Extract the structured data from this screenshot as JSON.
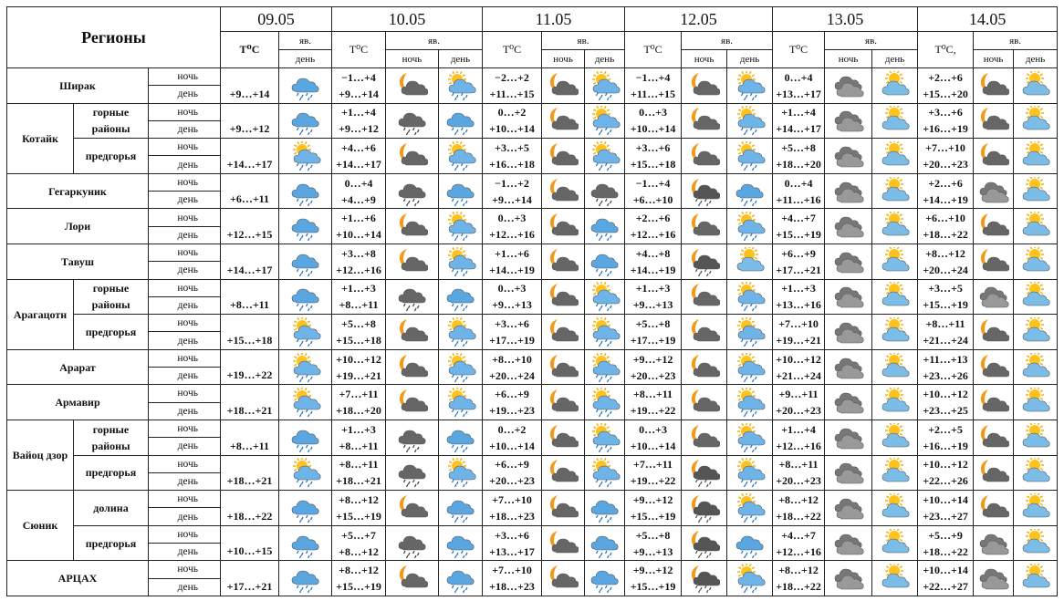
{
  "header": {
    "title": "Регионы",
    "yav": "яв.",
    "night": "ночь",
    "day": "день",
    "days": [
      {
        "date": "09.05",
        "t": "T⁰C"
      },
      {
        "date": "10.05",
        "t": "T⁰C"
      },
      {
        "date": "11.05",
        "t": "T⁰C"
      },
      {
        "date": "12.05",
        "t": "T⁰C"
      },
      {
        "date": "13.05",
        "t": "T⁰C"
      },
      {
        "date": "14.05",
        "t": "T⁰C,"
      }
    ]
  },
  "regions": [
    {
      "name": "Ширак",
      "parts": [
        {
          "forecast": [
            {
              "day": "+9…+14",
              "icons": [
                "rain"
              ]
            },
            {
              "night": "−1…+4",
              "day": "+9…+14",
              "icons": [
                "moon-cloud",
                "sun-rain"
              ]
            },
            {
              "night": "−2…+2",
              "day": "+11…+15",
              "icons": [
                "moon-cloud",
                "sun-rain"
              ]
            },
            {
              "night": "−1…+4",
              "day": "+11…+15",
              "icons": [
                "moon-cloud",
                "sun-rain"
              ]
            },
            {
              "night": "0…+4",
              "day": "+13…+17",
              "icons": [
                "cloud",
                "sun-cloud"
              ]
            },
            {
              "night": "+2…+6",
              "day": "+15…+20",
              "icons": [
                "moon-cloud",
                "sun-cloud"
              ]
            }
          ]
        }
      ]
    },
    {
      "name": "Котайк",
      "parts": [
        {
          "name": "горные районы",
          "forecast": [
            {
              "day": "+9…+12",
              "icons": [
                "rain"
              ]
            },
            {
              "night": "+1…+4",
              "day": "+9…+12",
              "icons": [
                "cloud-rain",
                "rain"
              ]
            },
            {
              "night": "0…+2",
              "day": "+10…+14",
              "icons": [
                "moon-cloud",
                "sun-rain"
              ]
            },
            {
              "night": "0…+3",
              "day": "+10…+14",
              "icons": [
                "moon-cloud",
                "sun-rain"
              ]
            },
            {
              "night": "+1…+4",
              "day": "+14…+17",
              "icons": [
                "cloud",
                "sun-cloud"
              ]
            },
            {
              "night": "+3…+6",
              "day": "+16…+19",
              "icons": [
                "moon-cloud",
                "sun-cloud"
              ]
            }
          ]
        },
        {
          "name": "предгорья",
          "forecast": [
            {
              "day": "+14…+17",
              "icons": [
                "sun-rain"
              ]
            },
            {
              "night": "+4…+6",
              "day": "+14…+17",
              "icons": [
                "moon-cloud",
                "sun-rain"
              ]
            },
            {
              "night": "+3…+5",
              "day": "+16…+18",
              "icons": [
                "moon-cloud",
                "sun-rain"
              ]
            },
            {
              "night": "+3…+6",
              "day": "+15…+18",
              "icons": [
                "moon-cloud",
                "sun-rain"
              ]
            },
            {
              "night": "+5…+8",
              "day": "+18…+20",
              "icons": [
                "cloud",
                "sun-cloud"
              ]
            },
            {
              "night": "+7…+10",
              "day": "+20…+23",
              "icons": [
                "moon-cloud",
                "sun-cloud"
              ]
            }
          ]
        }
      ]
    },
    {
      "name": "Гегаркуник",
      "parts": [
        {
          "forecast": [
            {
              "day": "+6…+11",
              "icons": [
                "rain"
              ]
            },
            {
              "night": "0…+4",
              "day": "+4…+9",
              "icons": [
                "cloud-rain",
                "rain"
              ]
            },
            {
              "night": "−1…+2",
              "day": "+9…+14",
              "icons": [
                "moon-cloud",
                "cloud-rain"
              ]
            },
            {
              "night": "−1…+4",
              "day": "+6…+10",
              "icons": [
                "moon-rain",
                "rain"
              ]
            },
            {
              "night": "0…+4",
              "day": "+11…+16",
              "icons": [
                "cloud",
                "sun-cloud"
              ]
            },
            {
              "night": "+2…+6",
              "day": "+14…+19",
              "icons": [
                "cloud",
                "sun-cloud"
              ]
            }
          ]
        }
      ]
    },
    {
      "name": "Лори",
      "parts": [
        {
          "forecast": [
            {
              "day": "+12…+15",
              "icons": [
                "rain"
              ]
            },
            {
              "night": "+1…+6",
              "day": "+10…+14",
              "icons": [
                "moon-cloud",
                "sun-rain"
              ]
            },
            {
              "night": "0…+3",
              "day": "+12…+16",
              "icons": [
                "moon-cloud",
                "rain"
              ]
            },
            {
              "night": "+2…+6",
              "day": "+12…+16",
              "icons": [
                "moon-cloud",
                "sun-rain"
              ]
            },
            {
              "night": "+4…+7",
              "day": "+15…+19",
              "icons": [
                "cloud",
                "sun-cloud"
              ]
            },
            {
              "night": "+6…+10",
              "day": "+18…+22",
              "icons": [
                "moon-cloud",
                "sun-cloud"
              ]
            }
          ]
        }
      ]
    },
    {
      "name": "Тавуш",
      "parts": [
        {
          "forecast": [
            {
              "day": "+14…+17",
              "icons": [
                "rain"
              ]
            },
            {
              "night": "+3…+8",
              "day": "+12…+16",
              "icons": [
                "moon-cloud",
                "sun-rain"
              ]
            },
            {
              "night": "+1…+6",
              "day": "+14…+19",
              "icons": [
                "moon-cloud",
                "rain"
              ]
            },
            {
              "night": "+4…+8",
              "day": "+14…+19",
              "icons": [
                "moon-rain",
                "sun-cloud"
              ]
            },
            {
              "night": "+6…+9",
              "day": "+17…+21",
              "icons": [
                "cloud",
                "sun-cloud"
              ]
            },
            {
              "night": "+8…+12",
              "day": "+20…+24",
              "icons": [
                "moon-cloud",
                "sun-cloud"
              ]
            }
          ]
        }
      ]
    },
    {
      "name": "Арагацотн",
      "parts": [
        {
          "name": "горные районы",
          "forecast": [
            {
              "day": "+8…+11",
              "icons": [
                "rain"
              ]
            },
            {
              "night": "+1…+3",
              "day": "+8…+11",
              "icons": [
                "cloud-rain",
                "rain"
              ]
            },
            {
              "night": "0…+3",
              "day": "+9…+13",
              "icons": [
                "moon-cloud",
                "sun-rain"
              ]
            },
            {
              "night": "+1…+3",
              "day": "+9…+13",
              "icons": [
                "moon-cloud",
                "sun-rain"
              ]
            },
            {
              "night": "+1…+3",
              "day": "+13…+16",
              "icons": [
                "cloud",
                "sun-cloud"
              ]
            },
            {
              "night": "+3…+5",
              "day": "+15…+19",
              "icons": [
                "cloud",
                "sun-cloud"
              ]
            }
          ]
        },
        {
          "name": "предгорья",
          "forecast": [
            {
              "day": "+15…+18",
              "icons": [
                "sun-rain"
              ]
            },
            {
              "night": "+5…+8",
              "day": "+15…+18",
              "icons": [
                "moon-cloud",
                "sun-rain"
              ]
            },
            {
              "night": "+3…+6",
              "day": "+17…+19",
              "icons": [
                "moon-cloud",
                "sun-rain"
              ]
            },
            {
              "night": "+5…+8",
              "day": "+17…+19",
              "icons": [
                "moon-cloud",
                "sun-rain"
              ]
            },
            {
              "night": "+7…+10",
              "day": "+19…+21",
              "icons": [
                "cloud",
                "sun-cloud"
              ]
            },
            {
              "night": "+8…+11",
              "day": "+21…+24",
              "icons": [
                "moon-cloud",
                "sun-cloud"
              ]
            }
          ]
        }
      ]
    },
    {
      "name": "Арарат",
      "parts": [
        {
          "forecast": [
            {
              "day": "+19…+22",
              "icons": [
                "sun-rain"
              ]
            },
            {
              "night": "+10…+12",
              "day": "+19…+21",
              "icons": [
                "moon-cloud",
                "sun-rain"
              ]
            },
            {
              "night": "+8…+10",
              "day": "+20…+24",
              "icons": [
                "moon-cloud",
                "sun-rain"
              ]
            },
            {
              "night": "+9…+12",
              "day": "+20…+23",
              "icons": [
                "moon-cloud",
                "sun-rain"
              ]
            },
            {
              "night": "+10…+12",
              "day": "+21…+24",
              "icons": [
                "cloud",
                "sun-cloud"
              ]
            },
            {
              "night": "+11…+13",
              "day": "+23…+26",
              "icons": [
                "moon-cloud",
                "sun-cloud"
              ]
            }
          ]
        }
      ]
    },
    {
      "name": "Армавир",
      "parts": [
        {
          "forecast": [
            {
              "day": "+18…+21",
              "icons": [
                "sun-rain"
              ]
            },
            {
              "night": "+7…+11",
              "day": "+18…+20",
              "icons": [
                "moon-cloud",
                "sun-rain"
              ]
            },
            {
              "night": "+6…+9",
              "day": "+19…+23",
              "icons": [
                "moon-cloud",
                "sun-rain"
              ]
            },
            {
              "night": "+8…+11",
              "day": "+19…+22",
              "icons": [
                "moon-cloud",
                "sun-rain"
              ]
            },
            {
              "night": "+9…+11",
              "day": "+20…+23",
              "icons": [
                "cloud",
                "sun-cloud"
              ]
            },
            {
              "night": "+10…+12",
              "day": "+23…+25",
              "icons": [
                "moon-cloud",
                "sun-cloud"
              ]
            }
          ]
        }
      ]
    },
    {
      "name": "Вайоц дзор",
      "parts": [
        {
          "name": "горные районы",
          "forecast": [
            {
              "day": "+8…+11",
              "icons": [
                "rain"
              ]
            },
            {
              "night": "+1…+3",
              "day": "+8…+11",
              "icons": [
                "cloud-rain",
                "rain"
              ]
            },
            {
              "night": "0…+2",
              "day": "+10…+14",
              "icons": [
                "moon-cloud",
                "sun-rain"
              ]
            },
            {
              "night": "0…+3",
              "day": "+10…+14",
              "icons": [
                "moon-cloud",
                "sun-rain"
              ]
            },
            {
              "night": "+1…+4",
              "day": "+12…+16",
              "icons": [
                "cloud",
                "sun-cloud"
              ]
            },
            {
              "night": "+2…+5",
              "day": "+16…+19",
              "icons": [
                "moon-cloud",
                "sun-cloud"
              ]
            }
          ]
        },
        {
          "name": "предгорья",
          "forecast": [
            {
              "day": "+18…+21",
              "icons": [
                "sun-rain"
              ]
            },
            {
              "night": "+8…+11",
              "day": "+18…+21",
              "icons": [
                "cloud-rain",
                "sun-rain"
              ]
            },
            {
              "night": "+6…+9",
              "day": "+20…+23",
              "icons": [
                "moon-cloud",
                "sun-rain"
              ]
            },
            {
              "night": "+7…+11",
              "day": "+19…+22",
              "icons": [
                "moon-rain",
                "sun-rain"
              ]
            },
            {
              "night": "+8…+11",
              "day": "+20…+23",
              "icons": [
                "cloud",
                "sun-cloud"
              ]
            },
            {
              "night": "+10…+12",
              "day": "+22…+26",
              "icons": [
                "moon-cloud",
                "sun-cloud"
              ]
            }
          ]
        }
      ]
    },
    {
      "name": "Сюник",
      "parts": [
        {
          "name": "долина",
          "forecast": [
            {
              "day": "+18…+22",
              "icons": [
                "rain"
              ]
            },
            {
              "night": "+8…+12",
              "day": "+15…+19",
              "icons": [
                "moon-cloud",
                "rain"
              ]
            },
            {
              "night": "+7…+10",
              "day": "+18…+23",
              "icons": [
                "moon-cloud",
                "rain"
              ]
            },
            {
              "night": "+9…+12",
              "day": "+15…+19",
              "icons": [
                "moon-rain",
                "sun-rain"
              ]
            },
            {
              "night": "+8…+12",
              "day": "+18…+22",
              "icons": [
                "cloud",
                "sun-cloud"
              ]
            },
            {
              "night": "+10…+14",
              "day": "+23…+27",
              "icons": [
                "moon-cloud",
                "sun-cloud"
              ]
            }
          ]
        },
        {
          "name": "предгорья",
          "forecast": [
            {
              "day": "+10…+15",
              "icons": [
                "rain"
              ]
            },
            {
              "night": "+5…+7",
              "day": "+8…+12",
              "icons": [
                "cloud-rain",
                "rain"
              ]
            },
            {
              "night": "+3…+6",
              "day": "+13…+17",
              "icons": [
                "moon-cloud",
                "rain"
              ]
            },
            {
              "night": "+5…+8",
              "day": "+9…+13",
              "icons": [
                "moon-rain",
                "rain"
              ]
            },
            {
              "night": "+4…+7",
              "day": "+12…+16",
              "icons": [
                "cloud",
                "sun-cloud"
              ]
            },
            {
              "night": "+5…+9",
              "day": "+18…+22",
              "icons": [
                "cloud",
                "sun-cloud"
              ]
            }
          ]
        }
      ]
    },
    {
      "name": "АРЦАХ",
      "parts": [
        {
          "forecast": [
            {
              "day": "+17…+21",
              "icons": [
                "rain"
              ]
            },
            {
              "night": "+8…+12",
              "day": "+15…+19",
              "icons": [
                "moon-cloud",
                "rain"
              ]
            },
            {
              "night": "+7…+10",
              "day": "+18…+23",
              "icons": [
                "moon-cloud",
                "rain"
              ]
            },
            {
              "night": "+9…+12",
              "day": "+15…+19",
              "icons": [
                "moon-rain",
                "sun-rain"
              ]
            },
            {
              "night": "+8…+12",
              "day": "+18…+22",
              "icons": [
                "cloud",
                "sun-cloud"
              ]
            },
            {
              "night": "+10…+14",
              "day": "+22…+27",
              "icons": [
                "cloud",
                "sun-cloud"
              ]
            }
          ]
        }
      ]
    }
  ]
}
